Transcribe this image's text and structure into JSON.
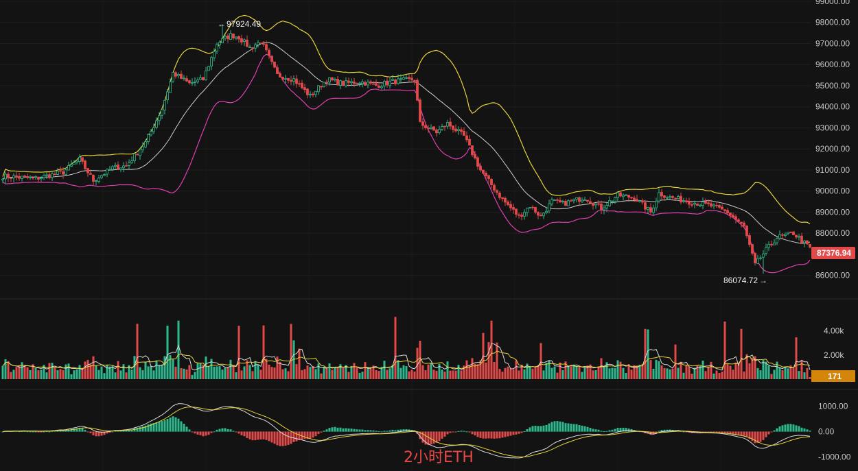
{
  "chart_data": [
    {
      "type": "candlestick",
      "panel": "price",
      "timeframe_label": "2小时ETH",
      "ylim": [
        85600,
        99000
      ],
      "y_ticks": [
        "86000.00",
        "87000.00",
        "88000.00",
        "89000.00",
        "90000.00",
        "91000.00",
        "92000.00",
        "93000.00",
        "94000.00",
        "95000.00",
        "96000.00",
        "97000.00",
        "98000.00",
        "99000.00"
      ],
      "last_price": "87376.94",
      "high_annotation": "97924.49",
      "low_annotation": "86074.72",
      "colors": {
        "up": "#2fb88e",
        "down": "#e04a4a",
        "bb_upper": "#e8d33a",
        "bb_middle": "#d0d0d0",
        "bb_lower": "#e040b0",
        "badge": "#e04a4a"
      },
      "close_anchors": [
        [
          0,
          90700
        ],
        [
          12,
          90600
        ],
        [
          22,
          90900
        ],
        [
          28,
          91500
        ],
        [
          33,
          90500
        ],
        [
          40,
          91100
        ],
        [
          45,
          91200
        ],
        [
          52,
          92300
        ],
        [
          58,
          93900
        ],
        [
          62,
          95600
        ],
        [
          68,
          95100
        ],
        [
          73,
          95300
        ],
        [
          78,
          97000
        ],
        [
          83,
          97400
        ],
        [
          86,
          97300
        ],
        [
          90,
          96800
        ],
        [
          94,
          97100
        ],
        [
          96,
          96600
        ],
        [
          100,
          95500
        ],
        [
          106,
          95300
        ],
        [
          112,
          94500
        ],
        [
          118,
          95300
        ],
        [
          124,
          95100
        ],
        [
          130,
          95200
        ],
        [
          136,
          95000
        ],
        [
          142,
          95200
        ],
        [
          150,
          95300
        ],
        [
          152,
          93200
        ],
        [
          158,
          92800
        ],
        [
          162,
          93200
        ],
        [
          168,
          92600
        ],
        [
          174,
          91000
        ],
        [
          182,
          89600
        ],
        [
          188,
          88800
        ],
        [
          192,
          89300
        ],
        [
          196,
          88800
        ],
        [
          200,
          89500
        ],
        [
          204,
          89400
        ],
        [
          212,
          89700
        ],
        [
          218,
          89200
        ],
        [
          224,
          89800
        ],
        [
          230,
          89700
        ],
        [
          236,
          89000
        ],
        [
          239,
          89900
        ],
        [
          243,
          89700
        ],
        [
          250,
          89500
        ],
        [
          258,
          89300
        ],
        [
          264,
          89000
        ],
        [
          270,
          88300
        ],
        [
          274,
          86500
        ],
        [
          278,
          87200
        ],
        [
          282,
          87800
        ],
        [
          288,
          88000
        ],
        [
          294,
          87300
        ]
      ],
      "volume": {
        "ylim": [
          0,
          5400
        ],
        "y_ticks": [
          "2.00k",
          "4.00k"
        ],
        "last_value": "171"
      },
      "macd": {
        "ylim": [
          -1150,
          1450
        ],
        "y_ticks": [
          "1000.00",
          "0.00",
          "-1000.00"
        ]
      }
    }
  ]
}
